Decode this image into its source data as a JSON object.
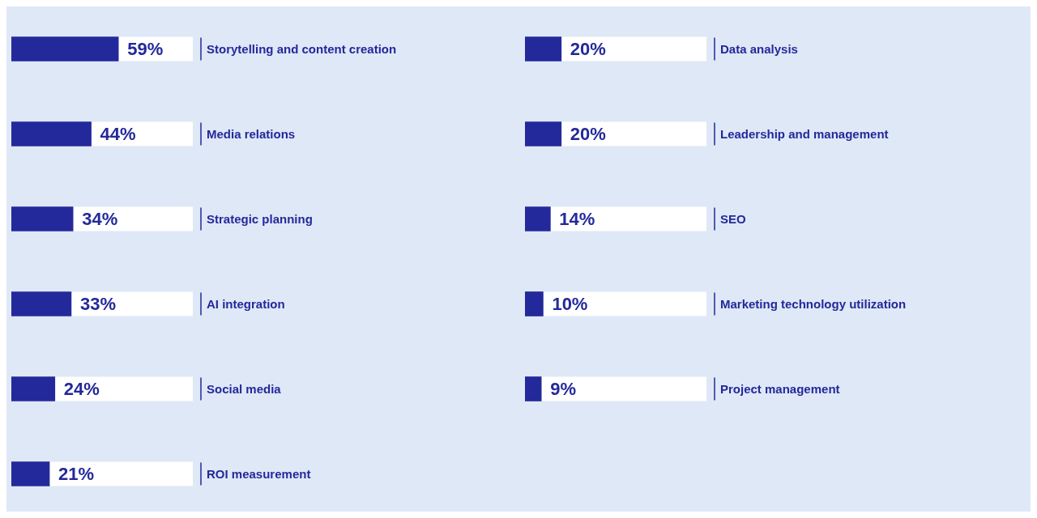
{
  "chart_data": [
    {
      "type": "bar",
      "orientation": "horizontal",
      "categories": [
        "Storytelling and content creation",
        "Media relations",
        "Strategic planning",
        "AI integration",
        "Social media",
        "ROI measurement"
      ],
      "values": [
        59,
        44,
        34,
        33,
        24,
        21
      ],
      "value_labels": [
        "59%",
        "44%",
        "34%",
        "33%",
        "24%",
        "21%"
      ],
      "color": "#23299a",
      "xlim": [
        0,
        100
      ],
      "tick_labels": false,
      "legend": false
    },
    {
      "type": "bar",
      "orientation": "horizontal",
      "categories": [
        "Data analysis",
        "Leadership and management",
        "SEO",
        "Marketing technology utilization",
        "Project management"
      ],
      "values": [
        20,
        20,
        14,
        10,
        9
      ],
      "value_labels": [
        "20%",
        "20%",
        "14%",
        "10%",
        "9%"
      ],
      "color": "#23299a",
      "xlim": [
        0,
        100
      ],
      "tick_labels": false,
      "legend": false
    }
  ]
}
